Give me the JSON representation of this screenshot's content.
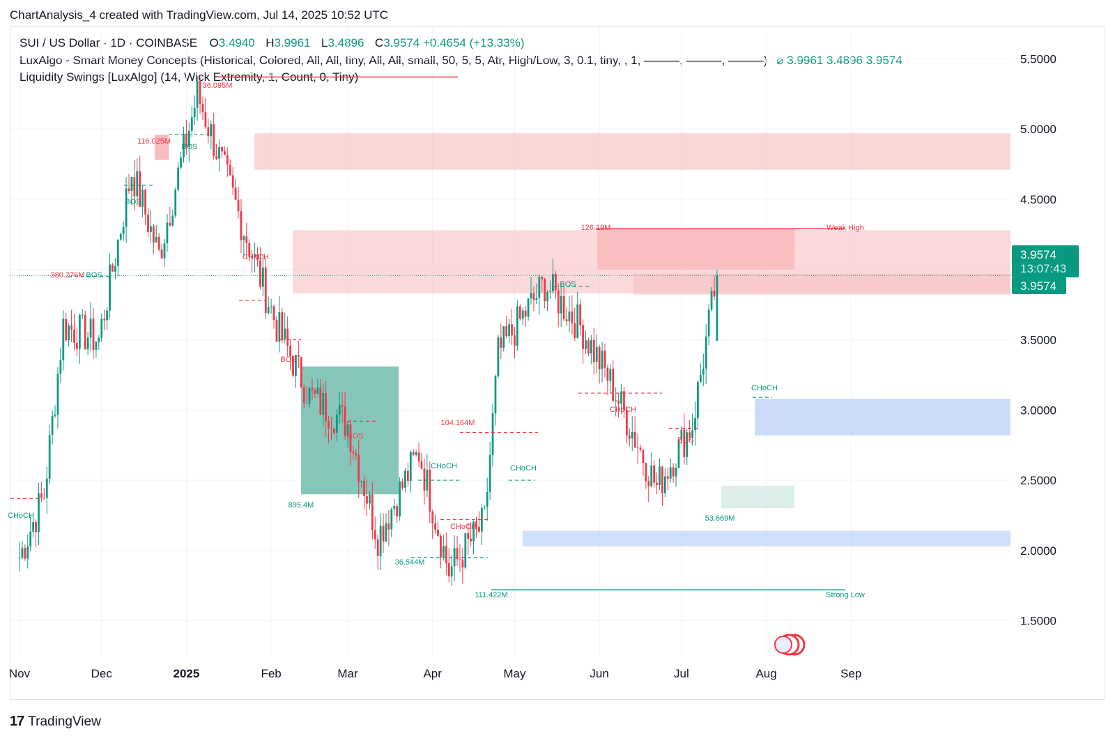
{
  "header": {
    "title": "ChartAnalysis_4 created with TradingView.com, Jul 14, 2025 10:52 UTC"
  },
  "legend": {
    "symbol": "SUI / US Dollar · 1D · COINBASE",
    "open_label": "O",
    "open": "3.4940",
    "high_label": "H",
    "high": "3.9961",
    "low_label": "L",
    "low": "3.4896",
    "close_label": "C",
    "close": "3.9574",
    "change": "+0.4654 (+13.33%)",
    "indicator1": "LuxAlgo - Smart Money Concepts (Historical, Colored, All, All, tiny, All, All, small, 50, 5, 5, Atr, High/Low, 3, 0.1, tiny, , 1, ———, ———, ———)",
    "indicator1_values": "⌀  3.9961  3.4896  3.9574",
    "indicator2": "Liquidity Swings [LuxAlgo] (14, Wick Extremity, 1, Count, 0, Tiny)"
  },
  "price_badge": {
    "price": "3.9574",
    "countdown": "13:07:43",
    "price2": "3.9574"
  },
  "footer": {
    "brand": "TradingView"
  },
  "colors": {
    "up": "#089981",
    "down": "#f23645",
    "supply_zone": "#f7c7c9",
    "demand_zone": "#b7cdf7",
    "badge": "#089981"
  },
  "chart_data": {
    "type": "candlestick",
    "ylim": [
      1.25,
      5.72
    ],
    "y_ticks": [
      "5.5000",
      "5.0000",
      "4.5000",
      "4.0000",
      "3.5000",
      "3.0000",
      "2.5000",
      "2.0000",
      "1.5000"
    ],
    "x_ticks": [
      "Nov",
      "Dec",
      "2025",
      "Feb",
      "Mar",
      "Apr",
      "May",
      "Jun",
      "Jul",
      "Aug",
      "Sep"
    ],
    "current_price": 3.9574,
    "key_closes": [
      {
        "date": "2024-11-01",
        "close": 1.95
      },
      {
        "date": "2024-11-10",
        "close": 2.4
      },
      {
        "date": "2024-11-17",
        "close": 3.6
      },
      {
        "date": "2024-11-30",
        "close": 3.5
      },
      {
        "date": "2024-12-12",
        "close": 4.7
      },
      {
        "date": "2024-12-22",
        "close": 4.1
      },
      {
        "date": "2025-01-05",
        "close": 5.25
      },
      {
        "date": "2025-01-20",
        "close": 4.4
      },
      {
        "date": "2025-02-03",
        "close": 3.6
      },
      {
        "date": "2025-02-15",
        "close": 3.1
      },
      {
        "date": "2025-03-01",
        "close": 2.9
      },
      {
        "date": "2025-03-12",
        "close": 2.1
      },
      {
        "date": "2025-03-27",
        "close": 2.7
      },
      {
        "date": "2025-04-07",
        "close": 1.85
      },
      {
        "date": "2025-04-20",
        "close": 2.2
      },
      {
        "date": "2025-04-25",
        "close": 3.4
      },
      {
        "date": "2025-05-12",
        "close": 3.9
      },
      {
        "date": "2025-05-25",
        "close": 3.6
      },
      {
        "date": "2025-06-05",
        "close": 3.2
      },
      {
        "date": "2025-06-22",
        "close": 2.45
      },
      {
        "date": "2025-07-05",
        "close": 2.9
      },
      {
        "date": "2025-07-14",
        "close": 3.9574
      }
    ],
    "zones": [
      {
        "kind": "supply",
        "from": 4.71,
        "to": 4.97
      },
      {
        "kind": "supply",
        "from": 3.83,
        "to": 4.28
      },
      {
        "kind": "supply",
        "from": 4.0,
        "to": 4.29
      },
      {
        "kind": "demand",
        "from": 2.82,
        "to": 3.08
      },
      {
        "kind": "demand",
        "from": 2.03,
        "to": 2.14
      },
      {
        "kind": "demand",
        "from": 2.3,
        "to": 2.46
      },
      {
        "kind": "demand",
        "from": 2.4,
        "to": 3.31
      },
      {
        "kind": "supply",
        "from": 3.82,
        "to": 3.97
      },
      {
        "kind": "supply",
        "from": 4.78,
        "to": 4.96
      }
    ],
    "levels": [
      {
        "price": 5.37,
        "label": "36.095M"
      },
      {
        "price": 4.29,
        "label": "126.19M"
      },
      {
        "price": 1.72,
        "label": "111.422M"
      }
    ],
    "annotations": [
      {
        "text": "36.095M"
      },
      {
        "text": "116.025M"
      },
      {
        "text": "BOS"
      },
      {
        "text": "BOS"
      },
      {
        "text": "380.276M"
      },
      {
        "text": "BOS"
      },
      {
        "text": "CHoCH"
      },
      {
        "text": "BOS"
      },
      {
        "text": "895.4M"
      },
      {
        "text": "BOS"
      },
      {
        "text": "104.164M"
      },
      {
        "text": "CHoCH"
      },
      {
        "text": "CHoCH"
      },
      {
        "text": "CHoCH"
      },
      {
        "text": "36.544M"
      },
      {
        "text": "111.422M"
      },
      {
        "text": "126.19M"
      },
      {
        "text": "BOS"
      },
      {
        "text": "CHoCH"
      },
      {
        "text": "Weak High"
      },
      {
        "text": "BOS"
      },
      {
        "text": "CHoCH"
      },
      {
        "text": "53.669M"
      },
      {
        "text": "Strong Low"
      },
      {
        "text": "CHoCH"
      }
    ]
  }
}
